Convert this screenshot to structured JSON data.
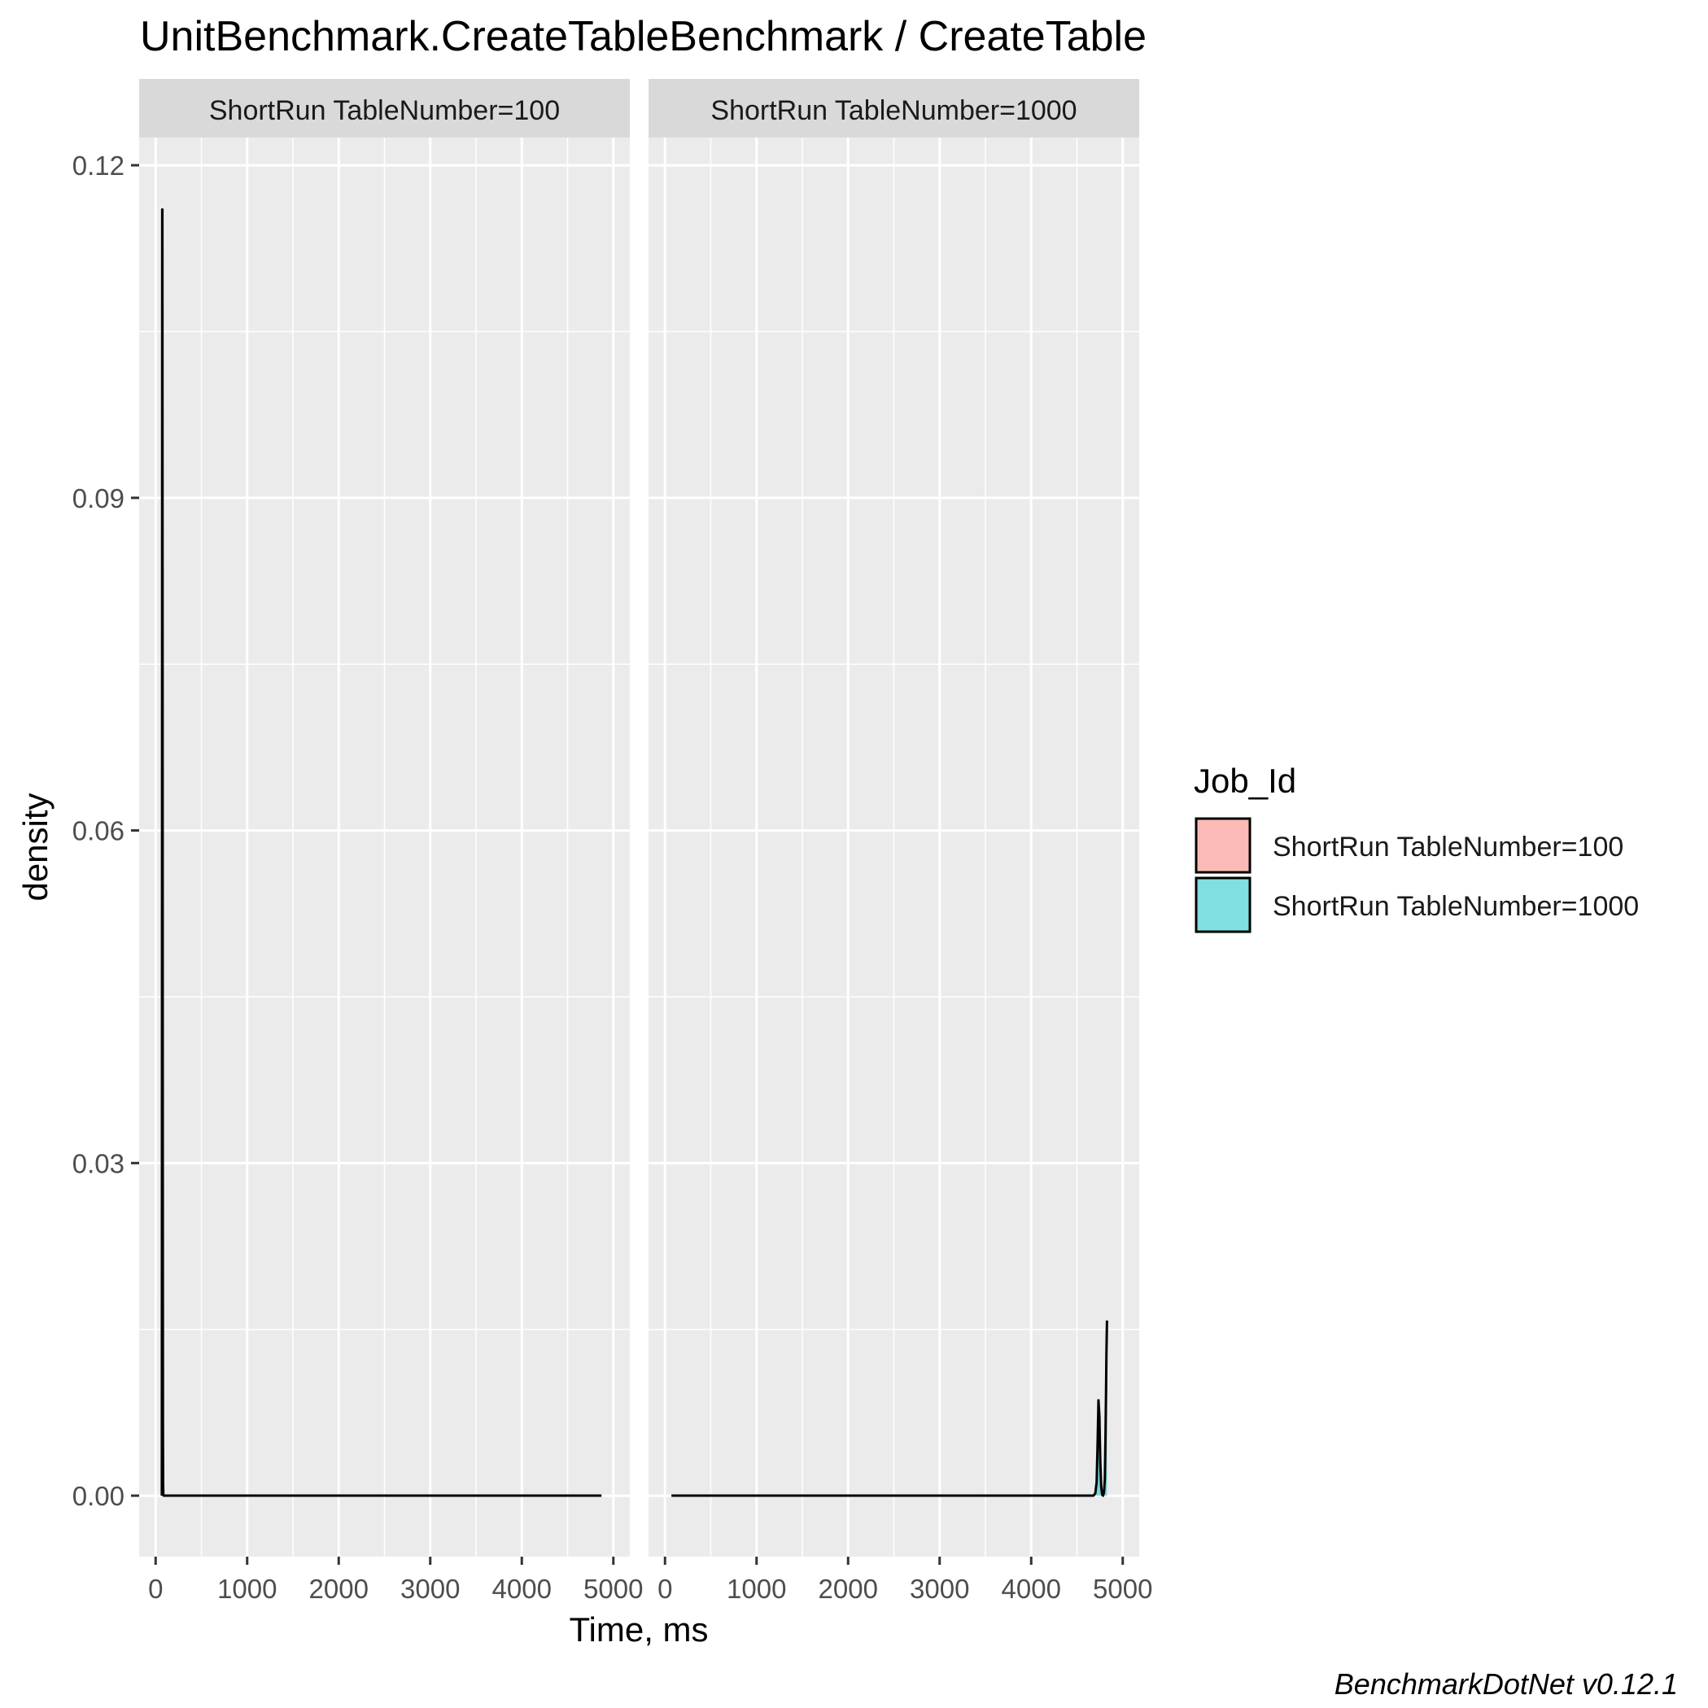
{
  "chart_data": {
    "type": "area",
    "title": "UnitBenchmark.CreateTableBenchmark / CreateTable",
    "xlabel": "Time, ms",
    "ylabel": "density",
    "caption": "BenchmarkDotNet v0.12.1",
    "xlim": [
      -180,
      5180
    ],
    "ylim": [
      -0.0055,
      0.1225
    ],
    "x_ticks": [
      0,
      1000,
      2000,
      3000,
      4000,
      5000
    ],
    "x_tick_labels": [
      "0",
      "1000",
      "2000",
      "3000",
      "4000",
      "5000"
    ],
    "y_ticks": [
      0.0,
      0.03,
      0.06,
      0.09,
      0.12
    ],
    "y_tick_labels": [
      "0.00",
      "0.03",
      "0.06",
      "0.09",
      "0.12"
    ],
    "grid": true,
    "legend": {
      "title": "Job_Id",
      "position": "right",
      "entries": [
        {
          "label": "ShortRun TableNumber=100",
          "color": "#F8766D"
        },
        {
          "label": "ShortRun TableNumber=1000",
          "color": "#00BFC4"
        }
      ]
    },
    "panels": [
      {
        "strip": "ShortRun TableNumber=100",
        "series": [
          {
            "color": "#F8766D",
            "x": [
              68,
              70,
              72,
              74,
              76,
              78,
              80,
              82,
              84,
              86,
              90,
              100,
              1000,
              2000,
              3000,
              4000,
              4870
            ],
            "y": [
              0.0,
              0.054,
              0.116,
              0.116,
              0.08,
              0.03,
              0.006,
              0.001,
              0.0002,
              0.0,
              0.0,
              0.0,
              0.0,
              0.0,
              0.0,
              0.0,
              0.0
            ]
          }
        ]
      },
      {
        "strip": "ShortRun TableNumber=1000",
        "series": [
          {
            "color": "#00BFC4",
            "x": [
              70,
              1000,
              2000,
              3000,
              4000,
              4680,
              4700,
              4715,
              4725,
              4735,
              4745,
              4755,
              4765,
              4775,
              4785,
              4795,
              4805,
              4812,
              4818,
              4822,
              4828
            ],
            "y": [
              0.0,
              0.0,
              0.0,
              0.0,
              0.0,
              0.0,
              0.0002,
              0.0012,
              0.0045,
              0.0086,
              0.0072,
              0.003,
              0.0008,
              0.0001,
              0.0,
              0.0003,
              0.0015,
              0.0055,
              0.0096,
              0.0128,
              0.0158
            ]
          }
        ]
      }
    ]
  }
}
